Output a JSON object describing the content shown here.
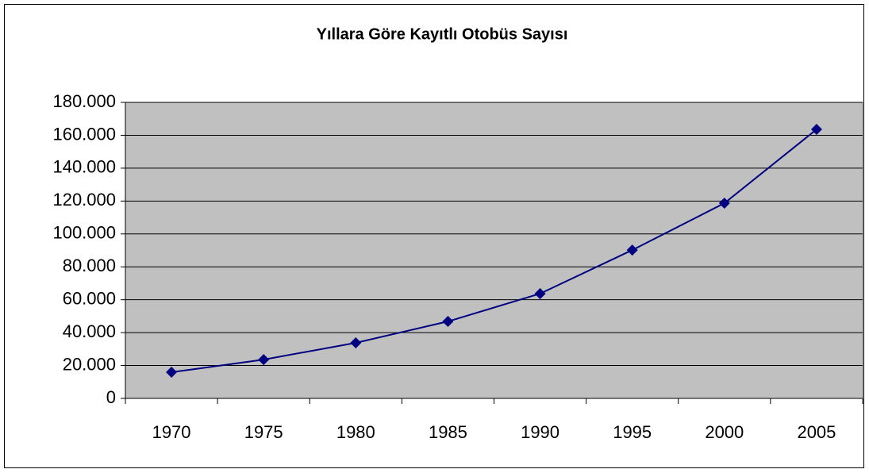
{
  "chart_data": {
    "type": "line",
    "title": "Yıllara Göre Kayıtlı Otobüs Sayısı",
    "categories": [
      "1970",
      "1975",
      "1980",
      "1985",
      "1990",
      "1995",
      "2000",
      "2005"
    ],
    "values": [
      15900,
      23600,
      33800,
      46800,
      63700,
      90200,
      118700,
      163600
    ],
    "color": "#000080",
    "plot_background": "#c0c0c0",
    "grid": true,
    "ylim": [
      0,
      180000
    ],
    "yticks": [
      0,
      {
        "value": 20000,
        "label": "20.000"
      },
      {
        "value": 40000,
        "label": "40.000"
      },
      {
        "value": 60000,
        "label": "60.000"
      },
      {
        "value": 80000,
        "label": "80.000"
      },
      {
        "value": 100000,
        "label": "100.000"
      },
      {
        "value": 120000,
        "label": "120.000"
      },
      {
        "value": 140000,
        "label": "140.000"
      },
      {
        "value": 160000,
        "label": "160.000"
      },
      {
        "value": 180000,
        "label": "180.000"
      }
    ]
  }
}
